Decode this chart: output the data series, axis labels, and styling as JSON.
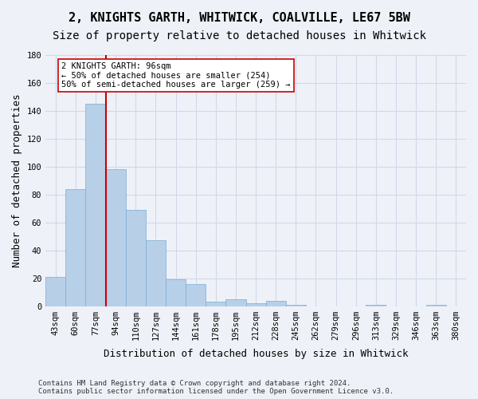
{
  "title_line1": "2, KNIGHTS GARTH, WHITWICK, COALVILLE, LE67 5BW",
  "title_line2": "Size of property relative to detached houses in Whitwick",
  "xlabel": "Distribution of detached houses by size in Whitwick",
  "ylabel": "Number of detached properties",
  "bins": [
    "43sqm",
    "60sqm",
    "77sqm",
    "94sqm",
    "110sqm",
    "127sqm",
    "144sqm",
    "161sqm",
    "178sqm",
    "195sqm",
    "212sqm",
    "228sqm",
    "245sqm",
    "262sqm",
    "279sqm",
    "296sqm",
    "313sqm",
    "329sqm",
    "346sqm",
    "363sqm",
    "380sqm"
  ],
  "values": [
    21,
    84,
    145,
    98,
    69,
    47,
    19,
    16,
    3,
    5,
    2,
    4,
    1,
    0,
    0,
    0,
    1,
    0,
    0,
    1,
    0
  ],
  "bar_color": "#b8cfe8",
  "bar_edge_color": "#7aacd6",
  "grid_color": "#d0d8e8",
  "background_color": "#eef2f8",
  "red_line_color": "#cc0000",
  "annotation_text": "2 KNIGHTS GARTH: 96sqm\n← 50% of detached houses are smaller (254)\n50% of semi-detached houses are larger (259) →",
  "annotation_box_color": "#ffffff",
  "annotation_border_color": "#cc0000",
  "ylim": [
    0,
    180
  ],
  "yticks": [
    0,
    20,
    40,
    60,
    80,
    100,
    120,
    140,
    160,
    180
  ],
  "footnote": "Contains HM Land Registry data © Crown copyright and database right 2024.\nContains public sector information licensed under the Open Government Licence v3.0.",
  "title_fontsize": 11,
  "subtitle_fontsize": 10,
  "axis_label_fontsize": 9,
  "tick_fontsize": 7.5,
  "footnote_fontsize": 6.5
}
